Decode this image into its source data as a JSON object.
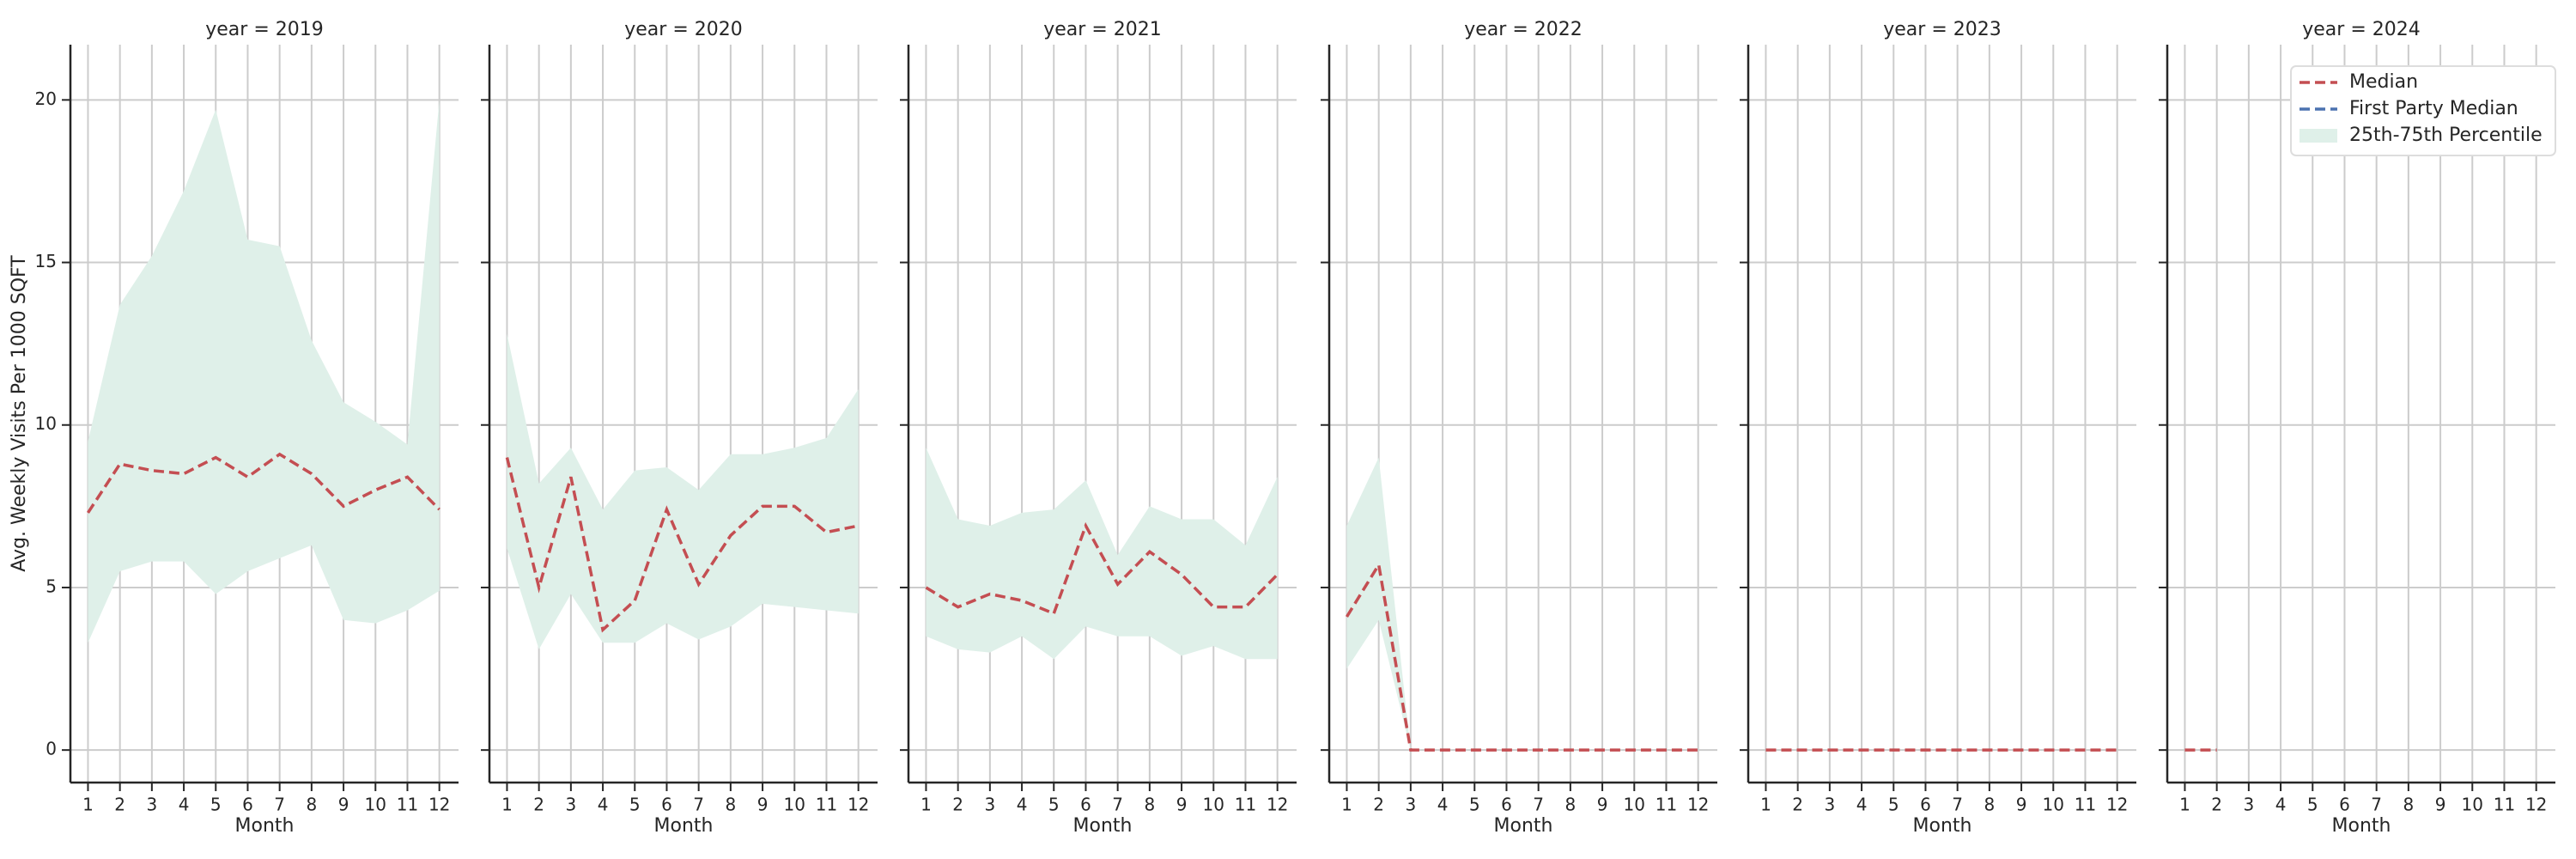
{
  "chart_data": [
    {
      "type": "line",
      "title": "year = 2019",
      "xlabel": "Month",
      "ylabel": "Avg. Weekly Visits Per 1000 SQFT",
      "x": [
        1,
        2,
        3,
        4,
        5,
        6,
        7,
        8,
        9,
        10,
        11,
        12
      ],
      "xlim": [
        0.45,
        12.6
      ],
      "xticks": [
        1,
        2,
        3,
        4,
        5,
        6,
        7,
        8,
        9,
        10,
        11,
        12
      ],
      "ylim": [
        -1.0,
        21.7
      ],
      "yticks": [
        0,
        5,
        10,
        15,
        20
      ],
      "show_ytick_labels": true,
      "grid": true,
      "series": [
        {
          "name": "Median",
          "color": "#c44e52",
          "dashed": true,
          "values": [
            7.3,
            8.8,
            8.6,
            8.5,
            9.0,
            8.4,
            9.1,
            8.5,
            7.5,
            8.0,
            8.4,
            7.4
          ]
        },
        {
          "name": "First Party Median",
          "color": "#4c72b0",
          "dashed": true,
          "values": [
            null,
            null,
            null,
            null,
            null,
            null,
            null,
            null,
            null,
            null,
            null,
            null
          ]
        },
        {
          "name": "25th-75th Percentile",
          "color": "#dff0e9",
          "band": true,
          "lower": [
            3.3,
            5.5,
            5.8,
            5.8,
            4.8,
            5.5,
            5.9,
            6.3,
            4.0,
            3.9,
            4.3,
            4.9
          ],
          "upper": [
            9.5,
            13.7,
            15.2,
            17.2,
            19.7,
            15.7,
            15.5,
            12.6,
            10.7,
            10.1,
            9.4,
            20.0
          ]
        }
      ]
    },
    {
      "type": "line",
      "title": "year = 2020",
      "xlabel": "Month",
      "x": [
        1,
        2,
        3,
        4,
        5,
        6,
        7,
        8,
        9,
        10,
        11,
        12
      ],
      "xlim": [
        0.45,
        12.6
      ],
      "xticks": [
        1,
        2,
        3,
        4,
        5,
        6,
        7,
        8,
        9,
        10,
        11,
        12
      ],
      "ylim": [
        -1.0,
        21.7
      ],
      "yticks": [
        0,
        5,
        10,
        15,
        20
      ],
      "show_ytick_labels": false,
      "grid": true,
      "series": [
        {
          "name": "Median",
          "color": "#c44e52",
          "dashed": true,
          "values": [
            9.0,
            5.0,
            8.4,
            3.7,
            4.6,
            7.4,
            5.1,
            6.6,
            7.5,
            7.5,
            6.7,
            6.9
          ]
        },
        {
          "name": "First Party Median",
          "color": "#4c72b0",
          "dashed": true,
          "values": [
            null,
            null,
            null,
            null,
            null,
            null,
            null,
            null,
            null,
            null,
            null,
            null
          ]
        },
        {
          "name": "25th-75th Percentile",
          "color": "#dff0e9",
          "band": true,
          "lower": [
            6.2,
            3.1,
            4.8,
            3.3,
            3.3,
            3.9,
            3.4,
            3.8,
            4.5,
            4.4,
            4.3,
            4.2
          ],
          "upper": [
            12.8,
            8.2,
            9.3,
            7.4,
            8.6,
            8.7,
            8.0,
            9.1,
            9.1,
            9.3,
            9.6,
            11.1
          ]
        }
      ]
    },
    {
      "type": "line",
      "title": "year = 2021",
      "xlabel": "Month",
      "x": [
        1,
        2,
        3,
        4,
        5,
        6,
        7,
        8,
        9,
        10,
        11,
        12
      ],
      "xlim": [
        0.45,
        12.6
      ],
      "xticks": [
        1,
        2,
        3,
        4,
        5,
        6,
        7,
        8,
        9,
        10,
        11,
        12
      ],
      "ylim": [
        -1.0,
        21.7
      ],
      "yticks": [
        0,
        5,
        10,
        15,
        20
      ],
      "show_ytick_labels": false,
      "grid": true,
      "series": [
        {
          "name": "Median",
          "color": "#c44e52",
          "dashed": true,
          "values": [
            5.0,
            4.4,
            4.8,
            4.6,
            4.2,
            6.9,
            5.1,
            6.1,
            5.4,
            4.4,
            4.4,
            5.4
          ]
        },
        {
          "name": "First Party Median",
          "color": "#4c72b0",
          "dashed": true,
          "values": [
            null,
            null,
            null,
            null,
            null,
            null,
            null,
            null,
            null,
            null,
            null,
            null
          ]
        },
        {
          "name": "25th-75th Percentile",
          "color": "#dff0e9",
          "band": true,
          "lower": [
            3.5,
            3.1,
            3.0,
            3.5,
            2.8,
            3.8,
            3.5,
            3.5,
            2.9,
            3.2,
            2.8,
            2.8
          ],
          "upper": [
            9.3,
            7.1,
            6.9,
            7.3,
            7.4,
            8.3,
            6.0,
            7.5,
            7.1,
            7.1,
            6.3,
            8.4
          ]
        }
      ]
    },
    {
      "type": "line",
      "title": "year = 2022",
      "xlabel": "Month",
      "x": [
        1,
        2,
        3,
        4,
        5,
        6,
        7,
        8,
        9,
        10,
        11,
        12
      ],
      "xlim": [
        0.45,
        12.6
      ],
      "xticks": [
        1,
        2,
        3,
        4,
        5,
        6,
        7,
        8,
        9,
        10,
        11,
        12
      ],
      "ylim": [
        -1.0,
        21.7
      ],
      "yticks": [
        0,
        5,
        10,
        15,
        20
      ],
      "show_ytick_labels": false,
      "grid": true,
      "series": [
        {
          "name": "Median",
          "color": "#c44e52",
          "dashed": true,
          "values": [
            4.1,
            5.7,
            0,
            0,
            0,
            0,
            0,
            0,
            0,
            0,
            0,
            0
          ]
        },
        {
          "name": "First Party Median",
          "color": "#4c72b0",
          "dashed": true,
          "values": [
            null,
            null,
            null,
            null,
            null,
            null,
            null,
            null,
            null,
            null,
            null,
            null
          ]
        },
        {
          "name": "25th-75th Percentile",
          "color": "#dff0e9",
          "band": true,
          "lower": [
            2.5,
            4.0,
            0,
            0,
            0,
            0,
            0,
            0,
            0,
            0,
            0,
            0
          ],
          "upper": [
            6.9,
            9.0,
            0,
            0,
            0,
            0,
            0,
            0,
            0,
            0,
            0,
            0
          ]
        }
      ]
    },
    {
      "type": "line",
      "title": "year = 2023",
      "xlabel": "Month",
      "x": [
        1,
        2,
        3,
        4,
        5,
        6,
        7,
        8,
        9,
        10,
        11,
        12
      ],
      "xlim": [
        0.45,
        12.6
      ],
      "xticks": [
        1,
        2,
        3,
        4,
        5,
        6,
        7,
        8,
        9,
        10,
        11,
        12
      ],
      "ylim": [
        -1.0,
        21.7
      ],
      "yticks": [
        0,
        5,
        10,
        15,
        20
      ],
      "show_ytick_labels": false,
      "grid": true,
      "series": [
        {
          "name": "Median",
          "color": "#c44e52",
          "dashed": true,
          "values": [
            0,
            0,
            0,
            0,
            0,
            0,
            0,
            0,
            0,
            0,
            0,
            0
          ]
        },
        {
          "name": "First Party Median",
          "color": "#4c72b0",
          "dashed": true,
          "values": [
            null,
            null,
            null,
            null,
            null,
            null,
            null,
            null,
            null,
            null,
            null,
            null
          ]
        },
        {
          "name": "25th-75th Percentile",
          "color": "#dff0e9",
          "band": true,
          "lower": [
            0,
            0,
            0,
            0,
            0,
            0,
            0,
            0,
            0,
            0,
            0,
            0
          ],
          "upper": [
            0,
            0,
            0,
            0,
            0,
            0,
            0,
            0,
            0,
            0,
            0,
            0
          ]
        }
      ]
    },
    {
      "type": "line",
      "title": "year = 2024",
      "xlabel": "Month",
      "x": [
        1,
        2,
        3,
        4,
        5,
        6,
        7,
        8,
        9,
        10,
        11,
        12
      ],
      "xlim": [
        0.45,
        12.6
      ],
      "xticks": [
        1,
        2,
        3,
        4,
        5,
        6,
        7,
        8,
        9,
        10,
        11,
        12
      ],
      "ylim": [
        -1.0,
        21.7
      ],
      "yticks": [
        0,
        5,
        10,
        15,
        20
      ],
      "show_ytick_labels": false,
      "grid": true,
      "legend": "upper right",
      "series": [
        {
          "name": "Median",
          "color": "#c44e52",
          "dashed": true,
          "values": [
            0,
            0,
            null,
            null,
            null,
            null,
            null,
            null,
            null,
            null,
            null,
            null
          ]
        },
        {
          "name": "First Party Median",
          "color": "#4c72b0",
          "dashed": true,
          "values": [
            null,
            null,
            null,
            null,
            null,
            null,
            null,
            null,
            null,
            null,
            null,
            null
          ]
        },
        {
          "name": "25th-75th Percentile",
          "color": "#dff0e9",
          "band": true,
          "lower": [
            0,
            0,
            null,
            null,
            null,
            null,
            null,
            null,
            null,
            null,
            null,
            null
          ],
          "upper": [
            0,
            0,
            null,
            null,
            null,
            null,
            null,
            null,
            null,
            null,
            null,
            null
          ]
        }
      ]
    }
  ]
}
